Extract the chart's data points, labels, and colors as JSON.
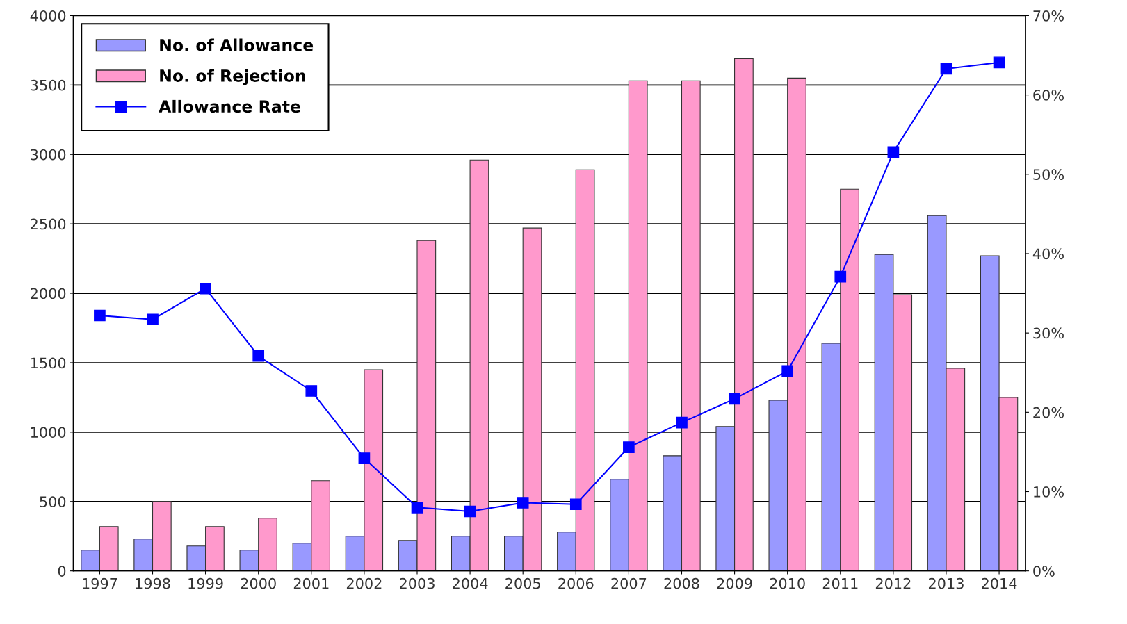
{
  "chart_data": {
    "type": "bar",
    "categories": [
      "1997",
      "1998",
      "1999",
      "2000",
      "2001",
      "2002",
      "2003",
      "2004",
      "2005",
      "2006",
      "2007",
      "2008",
      "2009",
      "2010",
      "2011",
      "2012",
      "2013",
      "2014"
    ],
    "series": [
      {
        "name": "No. of Allowance",
        "color": "#9999ff",
        "values": [
          150,
          230,
          180,
          150,
          200,
          250,
          220,
          250,
          250,
          280,
          660,
          830,
          1040,
          1230,
          1640,
          2280,
          2560,
          2270
        ]
      },
      {
        "name": "No. of Rejection",
        "color": "#ff99cc",
        "values": [
          320,
          500,
          320,
          380,
          650,
          1450,
          2380,
          2960,
          2470,
          2890,
          3530,
          3530,
          3690,
          3550,
          2750,
          1990,
          1460,
          1250
        ]
      },
      {
        "name": "Allowance Rate",
        "type": "line",
        "axis": "y2",
        "color": "#0000ff",
        "marker": "square",
        "values": [
          32.2,
          31.7,
          35.6,
          27.1,
          22.7,
          14.2,
          8.0,
          7.5,
          8.6,
          8.4,
          15.6,
          18.7,
          21.7,
          25.2,
          37.1,
          52.8,
          63.3,
          64.1
        ]
      }
    ],
    "ylim": [
      0,
      4000
    ],
    "yticks": [
      0,
      500,
      1000,
      1500,
      2000,
      2500,
      3000,
      3500,
      4000
    ],
    "y2lim": [
      0,
      70
    ],
    "y2ticks": [
      {
        "value": 0,
        "label": "0%"
      },
      {
        "value": 10,
        "label": "10%"
      },
      {
        "value": 20,
        "label": "20%"
      },
      {
        "value": 30,
        "label": "30%"
      },
      {
        "value": 40,
        "label": "40%"
      },
      {
        "value": 50,
        "label": "50%"
      },
      {
        "value": 60,
        "label": "60%"
      },
      {
        "value": 70,
        "label": "70%"
      }
    ],
    "grid": "y",
    "legend": "top left"
  }
}
